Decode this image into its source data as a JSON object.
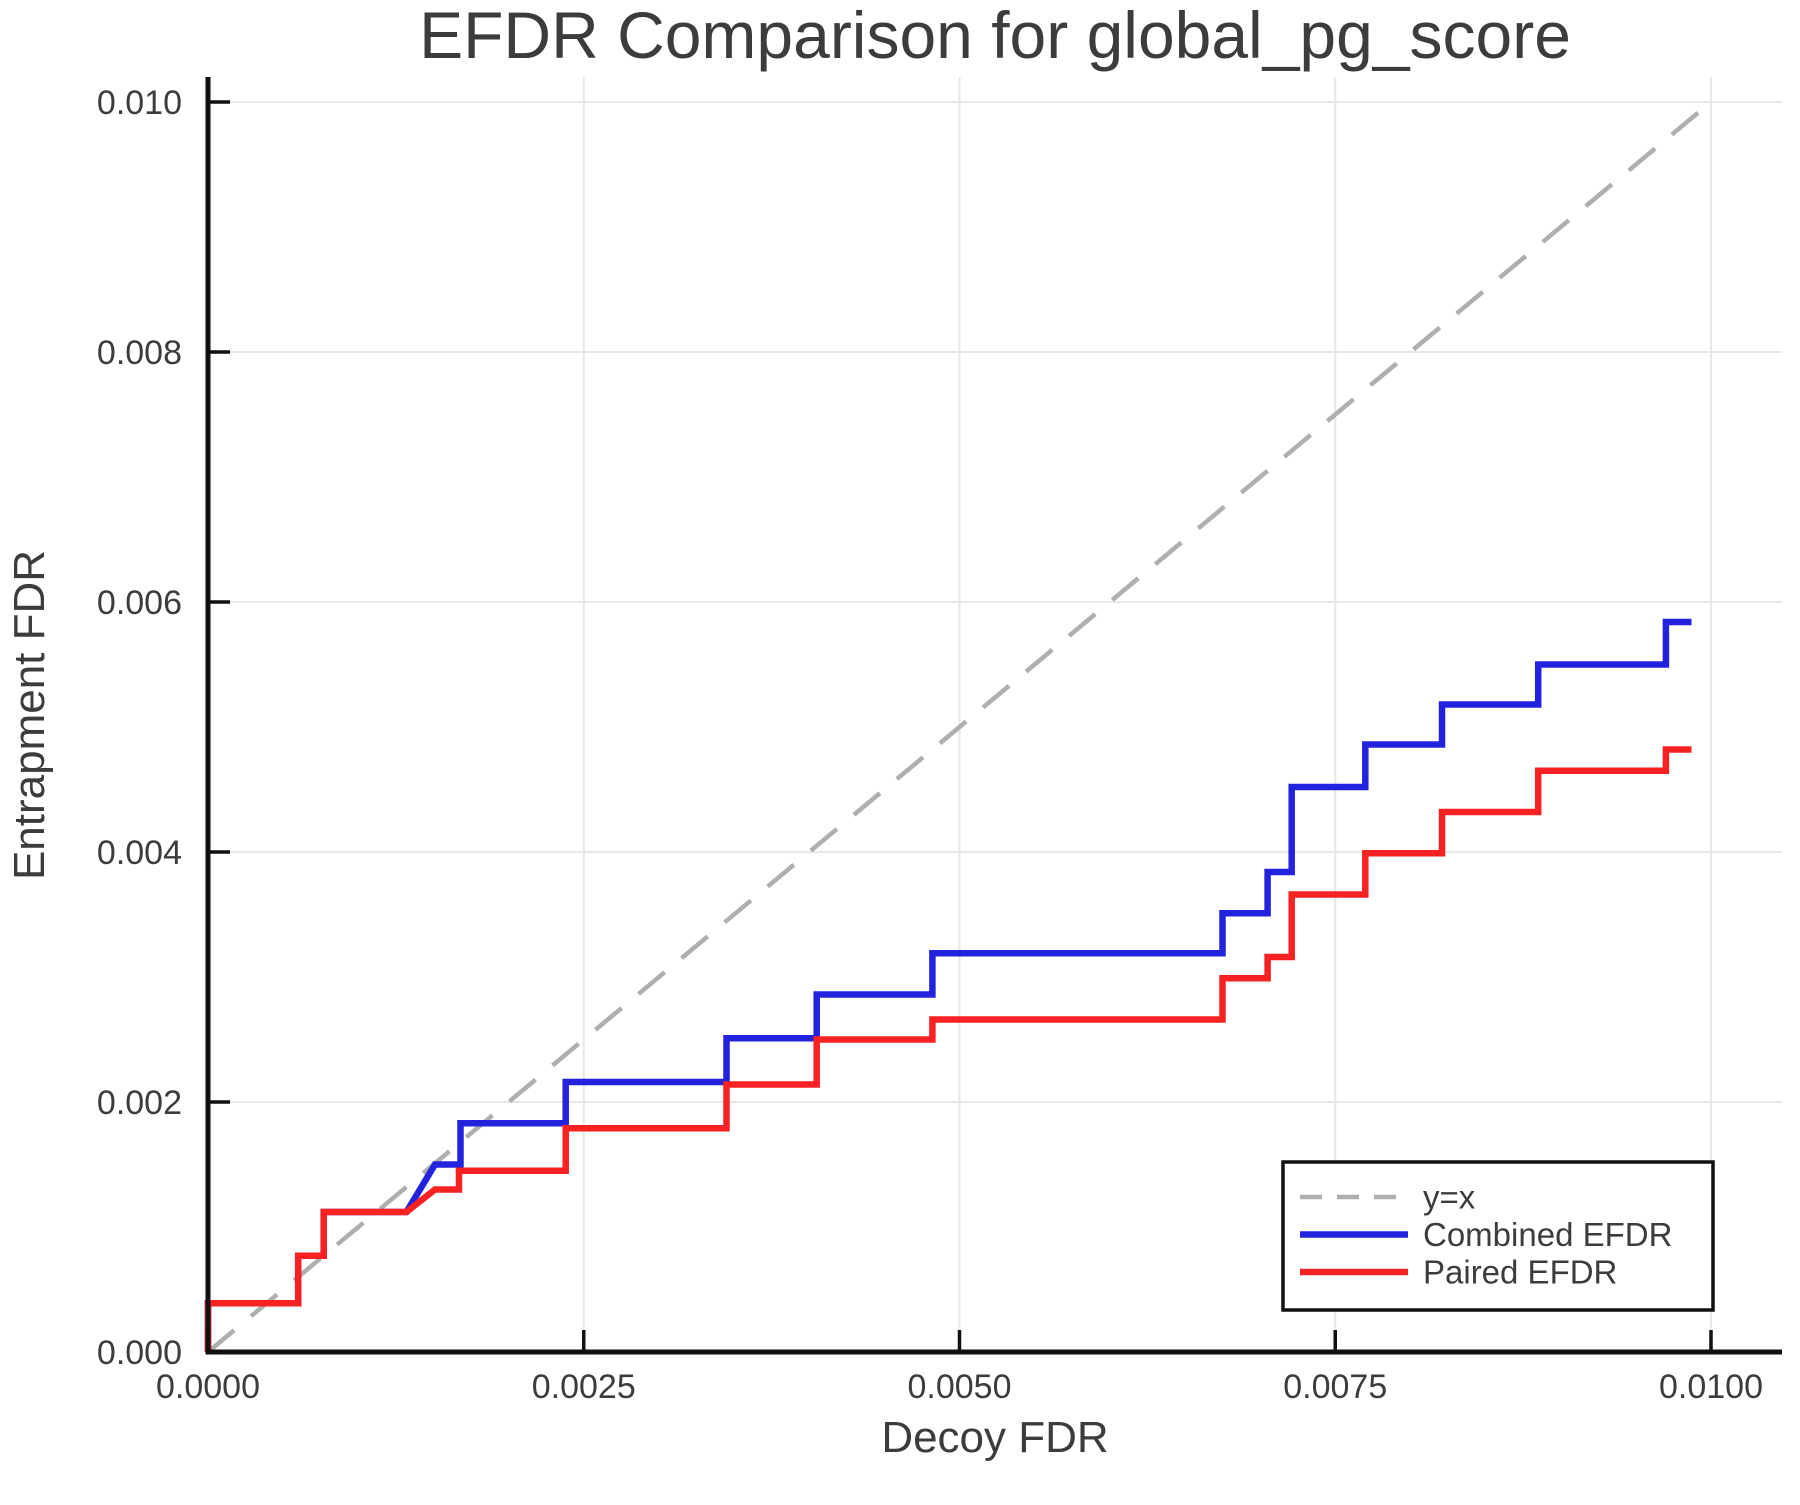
{
  "title": "EFDR Comparison for global_pg_score",
  "axes": {
    "xlabel": "Decoy FDR",
    "ylabel": "Entrapment FDR",
    "x_ticks": {
      "values": [
        0.0,
        0.0025,
        0.005,
        0.0075,
        0.01
      ],
      "labels": [
        "0.0000",
        "0.0025",
        "0.0050",
        "0.0075",
        "0.0100"
      ]
    },
    "y_ticks": {
      "values": [
        0.0,
        0.002,
        0.004,
        0.006,
        0.008,
        0.01
      ],
      "labels": [
        "0.000",
        "0.002",
        "0.004",
        "0.006",
        "0.008",
        "0.010"
      ]
    },
    "xlim": [
      0,
      0.0105
    ],
    "ylim": [
      0,
      0.0102
    ],
    "grid": true
  },
  "legend": {
    "position": "bottom-right",
    "entries": [
      {
        "label": "y=x",
        "color": "#AFAFAF",
        "dashed": true
      },
      {
        "label": "Combined EFDR",
        "color": "#2323DE",
        "dashed": false
      },
      {
        "label": "Paired EFDR",
        "color": "#F92222",
        "dashed": false
      }
    ]
  },
  "colors": {
    "grid": "#E7E7E7",
    "spine": "#111111",
    "text": "#3C3C3C",
    "background": "#FFFFFF"
  },
  "chart_data": {
    "type": "line",
    "title": "EFDR Comparison for global_pg_score",
    "xlabel": "Decoy FDR",
    "ylabel": "Entrapment FDR",
    "xlim": [
      0,
      0.0105
    ],
    "ylim": [
      0,
      0.0102
    ],
    "legend_position": "bottom-right",
    "series": [
      {
        "name": "y=x",
        "style": "dashed",
        "color": "#AFAFAF",
        "points": [
          [
            0,
            0
          ],
          [
            0.01,
            0.01
          ]
        ]
      },
      {
        "name": "Combined EFDR",
        "style": "solid",
        "color": "#2323DE",
        "points": [
          [
            0,
            0
          ],
          [
            0,
            0.00039
          ],
          [
            0.0006,
            0.00039
          ],
          [
            0.0006,
            0.00077
          ],
          [
            0.00077,
            0.00077
          ],
          [
            0.00077,
            0.00112
          ],
          [
            0.00132,
            0.00112
          ],
          [
            0.00151,
            0.0015
          ],
          [
            0.00168,
            0.0015
          ],
          [
            0.00168,
            0.00183
          ],
          [
            0.00238,
            0.00183
          ],
          [
            0.00238,
            0.00216
          ],
          [
            0.00345,
            0.00216
          ],
          [
            0.00345,
            0.00251
          ],
          [
            0.00405,
            0.00251
          ],
          [
            0.00405,
            0.00286
          ],
          [
            0.00482,
            0.00286
          ],
          [
            0.00482,
            0.00319
          ],
          [
            0.00675,
            0.00319
          ],
          [
            0.00675,
            0.00351
          ],
          [
            0.00705,
            0.00351
          ],
          [
            0.00705,
            0.00384
          ],
          [
            0.00721,
            0.00384
          ],
          [
            0.00721,
            0.00452
          ],
          [
            0.0077,
            0.00452
          ],
          [
            0.0077,
            0.00486
          ],
          [
            0.00821,
            0.00486
          ],
          [
            0.00821,
            0.00518
          ],
          [
            0.00885,
            0.00518
          ],
          [
            0.00885,
            0.0055
          ],
          [
            0.0097,
            0.0055
          ],
          [
            0.0097,
            0.00584
          ],
          [
            0.00987,
            0.00584
          ]
        ]
      },
      {
        "name": "Paired EFDR",
        "style": "solid",
        "color": "#F92222",
        "points": [
          [
            0,
            0
          ],
          [
            0,
            0.00039
          ],
          [
            0.0006,
            0.00039
          ],
          [
            0.0006,
            0.00077
          ],
          [
            0.00077,
            0.00077
          ],
          [
            0.00077,
            0.00112
          ],
          [
            0.00132,
            0.00112
          ],
          [
            0.00151,
            0.0013
          ],
          [
            0.00167,
            0.0013
          ],
          [
            0.00167,
            0.00145
          ],
          [
            0.00238,
            0.00145
          ],
          [
            0.00238,
            0.00179
          ],
          [
            0.00345,
            0.00179
          ],
          [
            0.00345,
            0.00214
          ],
          [
            0.00405,
            0.00214
          ],
          [
            0.00405,
            0.0025
          ],
          [
            0.00482,
            0.0025
          ],
          [
            0.00482,
            0.00266
          ],
          [
            0.00675,
            0.00266
          ],
          [
            0.00675,
            0.00299
          ],
          [
            0.00705,
            0.00299
          ],
          [
            0.00705,
            0.00316
          ],
          [
            0.00721,
            0.00316
          ],
          [
            0.00721,
            0.00366
          ],
          [
            0.0077,
            0.00366
          ],
          [
            0.0077,
            0.00399
          ],
          [
            0.00821,
            0.00399
          ],
          [
            0.00821,
            0.00432
          ],
          [
            0.00885,
            0.00432
          ],
          [
            0.00885,
            0.00465
          ],
          [
            0.0097,
            0.00465
          ],
          [
            0.0097,
            0.00482
          ],
          [
            0.00987,
            0.00482
          ]
        ]
      }
    ]
  }
}
